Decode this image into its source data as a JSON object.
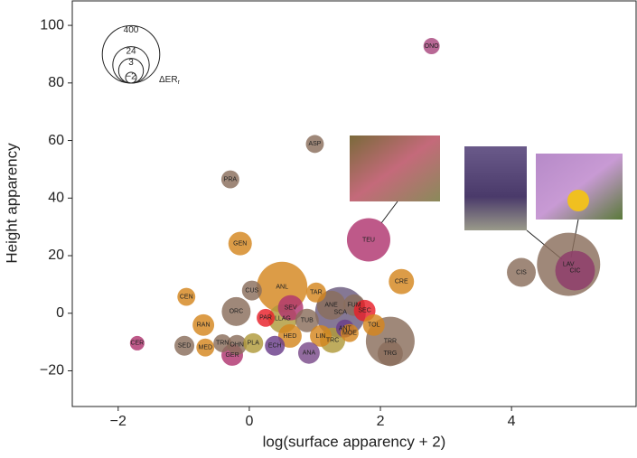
{
  "chart_data": {
    "type": "scatter",
    "xlabel": "log(surface apparency + 2)",
    "ylabel": "Height apparency",
    "xlim": [
      -2.7,
      5.9
    ],
    "ylim": [
      -32.4,
      108.5
    ],
    "xticks": [
      {
        "value": -2,
        "label": "−2"
      },
      0,
      2,
      4
    ],
    "yticks": [
      {
        "value": -20,
        "label": "−20"
      },
      0,
      20,
      40,
      60,
      80,
      100
    ],
    "size_legend": {
      "title": "ΔER",
      "title_sub": "r",
      "sizes": [
        400,
        24,
        3,
        {
          "value": -2,
          "label": "−2"
        }
      ]
    },
    "labels": [
      "ONO",
      "ASP",
      "PRA",
      "GEN",
      "TEU",
      "CRE",
      "CIS",
      "LAV",
      "CIC",
      "CEN",
      "CUS",
      "ANL",
      "TAR",
      "ORC",
      "SEV",
      "PAR",
      "LLAG",
      "ANE",
      "SCA",
      "FUM",
      "SEC",
      "TUB",
      "TOL",
      "ANT",
      "MOE",
      "LIN",
      "TRC",
      "HED",
      "RAN",
      "TRR",
      "TRG",
      "CER",
      "SED",
      "MED",
      "TRN",
      "OHN",
      "GER",
      "PLA",
      "ECH",
      "ANA"
    ],
    "x": [
      2.78,
      1.0,
      -0.29,
      -0.14,
      1.82,
      2.32,
      4.15,
      4.87,
      4.97,
      -0.96,
      0.04,
      0.5,
      1.02,
      -0.2,
      0.63,
      0.25,
      0.51,
      1.25,
      1.39,
      1.6,
      1.76,
      0.88,
      1.9,
      1.46,
      1.53,
      1.09,
      1.27,
      0.62,
      -0.7,
      2.15,
      2.15,
      -1.71,
      -0.99,
      -0.67,
      -0.41,
      -0.19,
      -0.26,
      0.06,
      0.39,
      0.91
    ],
    "y": [
      92.8,
      58.8,
      46.5,
      24.2,
      25.5,
      11,
      14.2,
      17,
      14.8,
      5.7,
      7.9,
      9.1,
      7.2,
      0.6,
      1.9,
      -1.6,
      -1.9,
      2.8,
      0.3,
      2.8,
      0.9,
      -2.5,
      -4.1,
      -5.3,
      -6.9,
      -7.9,
      -9.4,
      -7.9,
      -4.1,
      -9.7,
      -14,
      -10.4,
      -11.3,
      -11.9,
      -10.4,
      -11,
      -14.5,
      -10.4,
      -11.3,
      -13.8
    ],
    "sizes": [
      -1,
      -0.5,
      -0.5,
      2.1,
      63,
      3.4,
      7.2,
      845,
      38,
      -0.5,
      0.2,
      164,
      0.2,
      7.2,
      3.4,
      -0.5,
      7.2,
      7.2,
      164,
      1,
      1,
      2.1,
      1,
      -0.5,
      -0.5,
      1,
      3.4,
      2.1,
      1,
      129,
      3.4,
      -1.4,
      0.2,
      -0.5,
      -0.5,
      0.2,
      1,
      0.2,
      0.2,
      1
    ],
    "colors": [
      "#a8477e",
      "#8a6e5c",
      "#8a6e5c",
      "#d4861f",
      "#b0346f",
      "#d4861f",
      "#8a6e5c",
      "#8a6e5c",
      "#8e3a6a",
      "#d4861f",
      "#8a6e5c",
      "#d4861f",
      "#d4861f",
      "#8a6e5c",
      "#b0346f",
      "#e8202a",
      "#b09a3a",
      "#8a6e5c",
      "#6a5a7e",
      "#8a6e5c",
      "#e8202a",
      "#8a6e5c",
      "#d4861f",
      "#6a3d8a",
      "#d4861f",
      "#d4861f",
      "#b09a3a",
      "#d4861f",
      "#d4861f",
      "#8a6e5c",
      "#8a6e5c",
      "#b0346f",
      "#8a6e5c",
      "#d4861f",
      "#8a6e5c",
      "#8a6e5c",
      "#b0346f",
      "#b09a3a",
      "#6a3d8a",
      "#7a4a8a"
    ]
  }
}
